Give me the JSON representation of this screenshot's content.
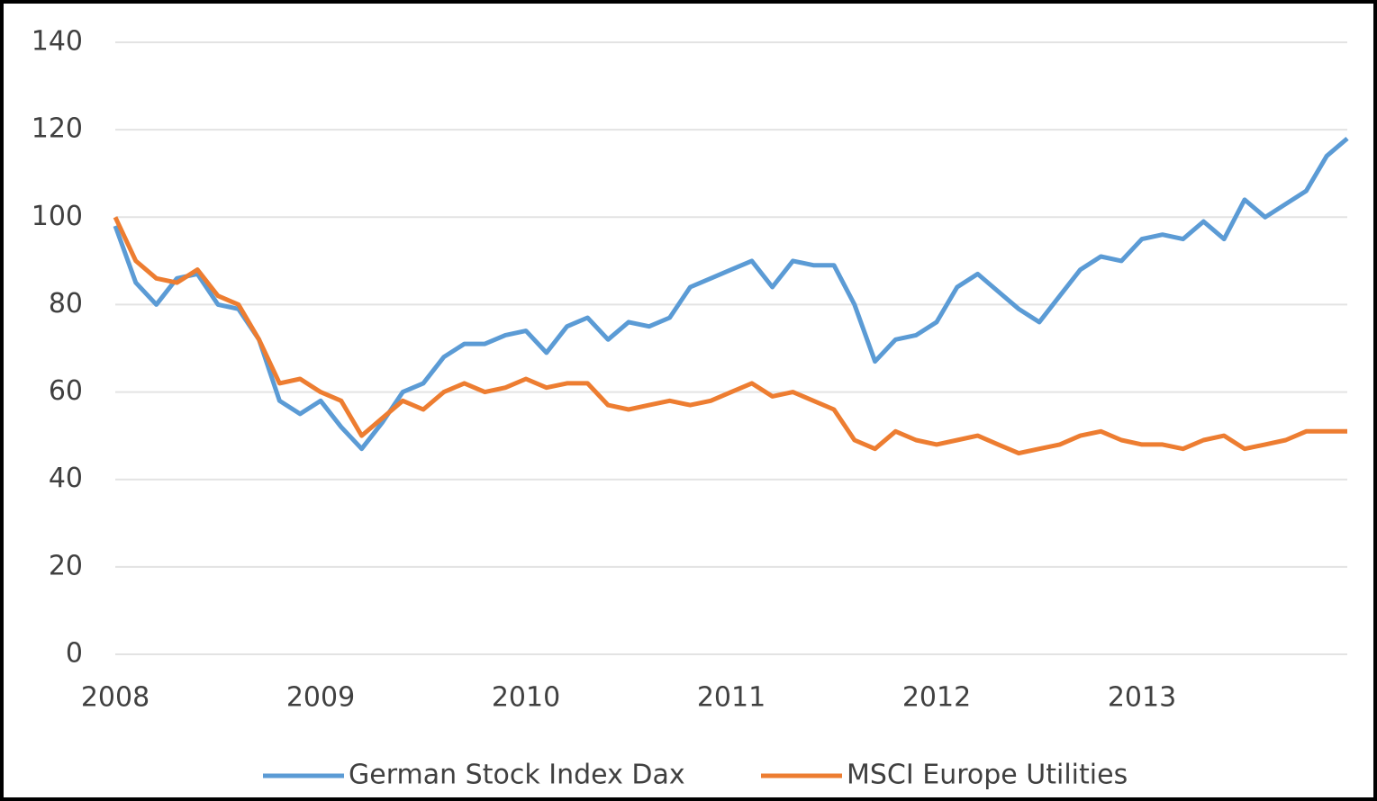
{
  "chart_data": {
    "type": "line",
    "x": [
      2008.0,
      2008.1,
      2008.2,
      2008.3,
      2008.4,
      2008.5,
      2008.6,
      2008.7,
      2008.8,
      2008.9,
      2009.0,
      2009.1,
      2009.2,
      2009.3,
      2009.4,
      2009.5,
      2009.6,
      2009.7,
      2009.8,
      2009.9,
      2010.0,
      2010.1,
      2010.2,
      2010.3,
      2010.4,
      2010.5,
      2010.6,
      2010.7,
      2010.8,
      2010.9,
      2011.0,
      2011.1,
      2011.2,
      2011.3,
      2011.4,
      2011.5,
      2011.6,
      2011.7,
      2011.8,
      2011.9,
      2012.0,
      2012.1,
      2012.2,
      2012.3,
      2012.4,
      2012.5,
      2012.6,
      2012.7,
      2012.8,
      2012.9,
      2013.0,
      2013.1,
      2013.2,
      2013.3,
      2013.4,
      2013.5,
      2013.6,
      2013.7,
      2013.8,
      2013.9,
      2014.0
    ],
    "series": [
      {
        "name": "German Stock Index Dax",
        "color": "#5b9bd5",
        "values": [
          98,
          85,
          80,
          86,
          87,
          80,
          79,
          72,
          58,
          55,
          58,
          52,
          47,
          53,
          60,
          62,
          68,
          71,
          71,
          73,
          74,
          69,
          75,
          77,
          72,
          76,
          75,
          77,
          84,
          86,
          88,
          90,
          84,
          90,
          89,
          89,
          80,
          67,
          72,
          73,
          76,
          84,
          87,
          83,
          79,
          76,
          82,
          88,
          91,
          90,
          95,
          96,
          95,
          99,
          95,
          104,
          100,
          103,
          106,
          114,
          118
        ]
      },
      {
        "name": "MSCI Europe Utilities",
        "color": "#ed7d31",
        "values": [
          100,
          90,
          86,
          85,
          88,
          82,
          80,
          72,
          62,
          63,
          60,
          58,
          50,
          54,
          58,
          56,
          60,
          62,
          60,
          61,
          63,
          61,
          62,
          62,
          57,
          56,
          57,
          58,
          57,
          58,
          60,
          62,
          59,
          60,
          58,
          56,
          49,
          47,
          51,
          49,
          48,
          49,
          50,
          48,
          46,
          47,
          48,
          50,
          51,
          49,
          48,
          48,
          47,
          49,
          50,
          47,
          48,
          49,
          51,
          51,
          51
        ]
      }
    ],
    "xlim": [
      2008,
      2014
    ],
    "xticks": [
      2008,
      2009,
      2010,
      2011,
      2012,
      2013
    ],
    "ylim": [
      0,
      140
    ],
    "yticks": [
      0,
      20,
      40,
      60,
      80,
      100,
      120,
      140
    ],
    "grid": true
  }
}
